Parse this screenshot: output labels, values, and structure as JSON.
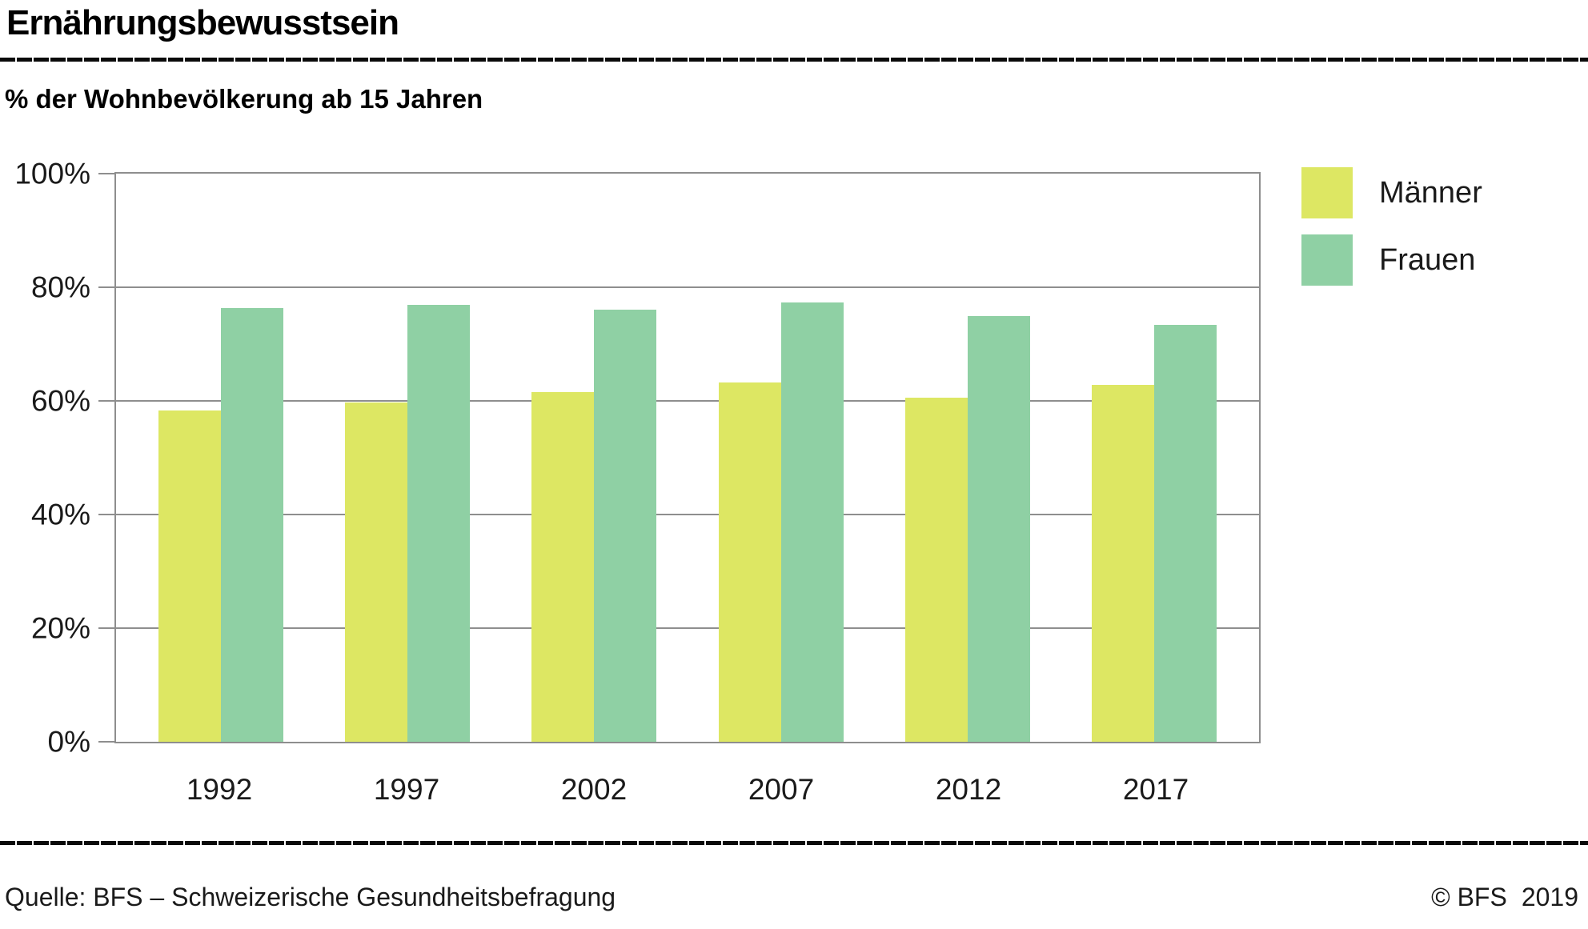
{
  "header": {
    "title": "Ernährungsbewusstsein"
  },
  "chart_data": {
    "type": "bar",
    "title": "Ernährungsbewusstsein",
    "subtitle": "% der Wohnbevölkerung ab 15 Jahren",
    "categories": [
      "1992",
      "1997",
      "2002",
      "2007",
      "2012",
      "2017"
    ],
    "series": [
      {
        "name": "Männer",
        "color": "#dde763",
        "values": [
          58.3,
          59.7,
          61.5,
          63.3,
          60.6,
          62.8
        ]
      },
      {
        "name": "Frauen",
        "color": "#8fd0a4",
        "values": [
          76.3,
          76.9,
          76.0,
          77.3,
          74.9,
          73.4
        ]
      }
    ],
    "xlabel": "",
    "ylabel": "",
    "ylim": [
      0,
      100
    ],
    "yticks": [
      {
        "value": 0,
        "label": "0%"
      },
      {
        "value": 20,
        "label": "20%"
      },
      {
        "value": 40,
        "label": "40%"
      },
      {
        "value": 60,
        "label": "60%"
      },
      {
        "value": 80,
        "label": "80%"
      },
      {
        "value": 100,
        "label": "100%"
      }
    ],
    "grid": true,
    "grid_color": "#8e8e8e",
    "legend_position": "top-right"
  },
  "footer": {
    "source": "Quelle: BFS – Schweizerische Gesundheitsbefragung",
    "copyright": "© BFS",
    "year": "2019"
  }
}
